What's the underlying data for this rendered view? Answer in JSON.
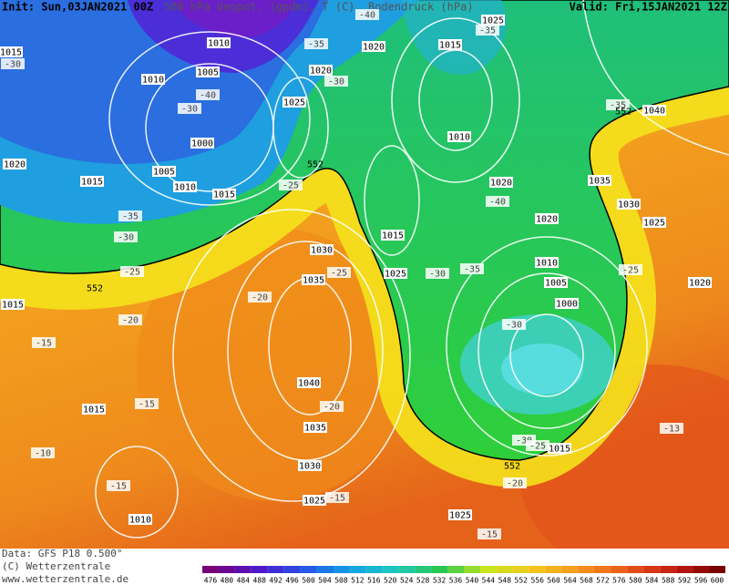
{
  "header": {
    "init": "Init: Sun,03JAN2021 00Z",
    "title": "500 hPa Geopot. (gpdm), T (C), Bodendruck (hPa)",
    "valid": "Valid: Fri,15JAN2021 12Z"
  },
  "footer": {
    "data": "Data: GFS P18 0.500°",
    "copyright": "(C) Wetterzentrale",
    "url": "www.wetterzentrale.de"
  },
  "colorbar": {
    "labels": [
      476,
      480,
      484,
      488,
      492,
      496,
      500,
      504,
      508,
      512,
      516,
      520,
      524,
      528,
      532,
      536,
      540,
      544,
      548,
      552,
      556,
      560,
      564,
      568,
      572,
      576,
      580,
      584,
      588,
      592,
      596,
      600
    ]
  },
  "isobar_labels": [
    1010,
    1010,
    1005,
    1000,
    1005,
    1010,
    1015,
    1020,
    1015,
    1025,
    1020,
    1020,
    1015,
    1025,
    1010,
    1020,
    1015,
    1025,
    1020,
    1010,
    1005,
    1000,
    1015,
    1035,
    1030,
    1025,
    1040,
    1020,
    1030,
    1035,
    1040,
    1035,
    1030,
    1025,
    1010,
    1015,
    1015,
    1025,
    1015
  ],
  "temperature_labels": [
    -40,
    -30,
    -35,
    -30,
    -30,
    -40,
    -35,
    -35,
    -25,
    -35,
    -30,
    -25,
    -25,
    -20,
    -20,
    -15,
    -15,
    -20,
    -10,
    -15,
    -15,
    -20,
    -15,
    -13,
    -25,
    -30,
    -35,
    -30,
    -40,
    -30,
    -25
  ],
  "height_labels": [
    552,
    552,
    552,
    552
  ]
}
